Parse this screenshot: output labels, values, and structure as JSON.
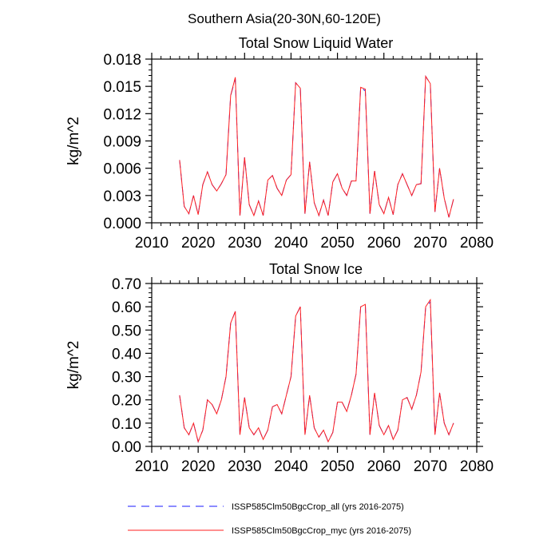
{
  "main_title": "Southern Asia(20-30N,60-120E)",
  "colors": {
    "series_all": "#1a1aff",
    "series_myc": "#ff2020",
    "axis": "#000000"
  },
  "legend": [
    {
      "label": "ISSP585Clm50BgcCrop_all (yrs 2016-2075)",
      "style": "dashed",
      "color": "#1a1aff"
    },
    {
      "label": "ISSP585Clm50BgcCrop_myc (yrs 2016-2075)",
      "style": "solid",
      "color": "#ff2020"
    }
  ],
  "chart_data": [
    {
      "type": "line",
      "title": "Total Snow Liquid Water",
      "xlabel": "",
      "ylabel": "kg/m^2",
      "xlim": [
        2010,
        2080
      ],
      "ylim": [
        0,
        0.018
      ],
      "xticks": [
        2010,
        2020,
        2030,
        2040,
        2050,
        2060,
        2070,
        2080
      ],
      "yticks": [
        0.0,
        0.003,
        0.006,
        0.009,
        0.012,
        0.015,
        0.018
      ],
      "ytick_labels": [
        "0.000",
        "0.003",
        "0.006",
        "0.009",
        "0.012",
        "0.015",
        "0.018"
      ],
      "x": [
        2016,
        2017,
        2018,
        2019,
        2020,
        2021,
        2022,
        2023,
        2024,
        2025,
        2026,
        2027,
        2028,
        2029,
        2030,
        2031,
        2032,
        2033,
        2034,
        2035,
        2036,
        2037,
        2038,
        2039,
        2040,
        2041,
        2042,
        2043,
        2044,
        2045,
        2046,
        2047,
        2048,
        2049,
        2050,
        2051,
        2052,
        2053,
        2054,
        2055,
        2056,
        2057,
        2058,
        2059,
        2060,
        2061,
        2062,
        2063,
        2064,
        2065,
        2066,
        2067,
        2068,
        2069,
        2070,
        2071,
        2072,
        2073,
        2074,
        2075
      ],
      "series": [
        {
          "name": "ISSP585Clm50BgcCrop_all",
          "values": [
            0.0069,
            0.0018,
            0.001,
            0.003,
            0.0009,
            0.0042,
            0.0056,
            0.0042,
            0.0035,
            0.0043,
            0.0053,
            0.014,
            0.0158,
            0.0008,
            0.0072,
            0.002,
            0.0008,
            0.0024,
            0.0008,
            0.0047,
            0.0052,
            0.0038,
            0.003,
            0.0047,
            0.0053,
            0.0154,
            0.0148,
            0.001,
            0.0067,
            0.0022,
            0.0008,
            0.0025,
            0.0008,
            0.0045,
            0.0054,
            0.0038,
            0.003,
            0.0046,
            0.0046,
            0.0149,
            0.0145,
            0.001,
            0.0057,
            0.002,
            0.001,
            0.0028,
            0.0009,
            0.0042,
            0.0054,
            0.0042,
            0.003,
            0.0042,
            0.0043,
            0.0161,
            0.0153,
            0.0012,
            0.006,
            0.0027,
            0.0006,
            0.0026
          ]
        },
        {
          "name": "ISSP585Clm50BgcCrop_myc",
          "values": [
            0.0069,
            0.0018,
            0.001,
            0.003,
            0.0009,
            0.0042,
            0.0056,
            0.0042,
            0.0035,
            0.0043,
            0.0053,
            0.014,
            0.016,
            0.0008,
            0.0072,
            0.002,
            0.0008,
            0.0024,
            0.0008,
            0.0047,
            0.0052,
            0.0038,
            0.003,
            0.0047,
            0.0053,
            0.0154,
            0.0148,
            0.001,
            0.0067,
            0.0022,
            0.0008,
            0.0025,
            0.0008,
            0.0045,
            0.0054,
            0.0038,
            0.003,
            0.0046,
            0.0046,
            0.0149,
            0.0147,
            0.001,
            0.0057,
            0.002,
            0.001,
            0.0028,
            0.0009,
            0.0042,
            0.0054,
            0.0042,
            0.003,
            0.0042,
            0.0043,
            0.0161,
            0.0153,
            0.0012,
            0.006,
            0.0027,
            0.0006,
            0.0026
          ]
        }
      ]
    },
    {
      "type": "line",
      "title": "Total Snow Ice",
      "xlabel": "",
      "ylabel": "kg/m^2",
      "xlim": [
        2010,
        2080
      ],
      "ylim": [
        0,
        0.7
      ],
      "xticks": [
        2010,
        2020,
        2030,
        2040,
        2050,
        2060,
        2070,
        2080
      ],
      "yticks": [
        0.0,
        0.1,
        0.2,
        0.3,
        0.4,
        0.5,
        0.6,
        0.7
      ],
      "ytick_labels": [
        "0.00",
        "0.10",
        "0.20",
        "0.30",
        "0.40",
        "0.50",
        "0.60",
        "0.70"
      ],
      "x": [
        2016,
        2017,
        2018,
        2019,
        2020,
        2021,
        2022,
        2023,
        2024,
        2025,
        2026,
        2027,
        2028,
        2029,
        2030,
        2031,
        2032,
        2033,
        2034,
        2035,
        2036,
        2037,
        2038,
        2039,
        2040,
        2041,
        2042,
        2043,
        2044,
        2045,
        2046,
        2047,
        2048,
        2049,
        2050,
        2051,
        2052,
        2053,
        2054,
        2055,
        2056,
        2057,
        2058,
        2059,
        2060,
        2061,
        2062,
        2063,
        2064,
        2065,
        2066,
        2067,
        2068,
        2069,
        2070,
        2071,
        2072,
        2073,
        2074,
        2075
      ],
      "series": [
        {
          "name": "ISSP585Clm50BgcCrop_all",
          "values": [
            0.22,
            0.08,
            0.05,
            0.1,
            0.02,
            0.07,
            0.2,
            0.18,
            0.14,
            0.2,
            0.3,
            0.53,
            0.58,
            0.05,
            0.21,
            0.08,
            0.05,
            0.08,
            0.03,
            0.07,
            0.17,
            0.18,
            0.14,
            0.22,
            0.3,
            0.56,
            0.6,
            0.05,
            0.22,
            0.08,
            0.04,
            0.07,
            0.02,
            0.06,
            0.19,
            0.19,
            0.15,
            0.22,
            0.31,
            0.6,
            0.61,
            0.05,
            0.23,
            0.09,
            0.05,
            0.09,
            0.03,
            0.07,
            0.2,
            0.21,
            0.16,
            0.22,
            0.32,
            0.6,
            0.62,
            0.05,
            0.23,
            0.1,
            0.05,
            0.1
          ]
        },
        {
          "name": "ISSP585Clm50BgcCrop_myc",
          "values": [
            0.22,
            0.08,
            0.05,
            0.1,
            0.02,
            0.07,
            0.2,
            0.18,
            0.14,
            0.2,
            0.3,
            0.53,
            0.58,
            0.05,
            0.21,
            0.08,
            0.05,
            0.08,
            0.03,
            0.07,
            0.17,
            0.18,
            0.14,
            0.22,
            0.3,
            0.56,
            0.6,
            0.05,
            0.22,
            0.08,
            0.04,
            0.07,
            0.02,
            0.06,
            0.19,
            0.19,
            0.15,
            0.22,
            0.31,
            0.6,
            0.61,
            0.05,
            0.23,
            0.09,
            0.05,
            0.09,
            0.03,
            0.07,
            0.2,
            0.21,
            0.16,
            0.22,
            0.32,
            0.6,
            0.63,
            0.05,
            0.23,
            0.1,
            0.05,
            0.1
          ]
        }
      ]
    }
  ]
}
